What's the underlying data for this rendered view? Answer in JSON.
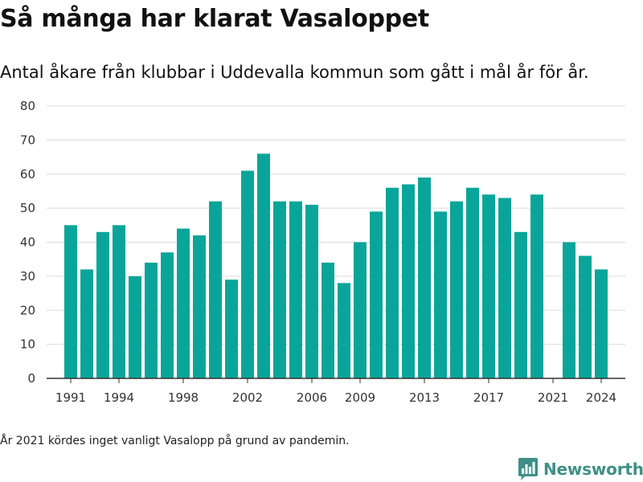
{
  "header": {
    "title": "Så många har klarat Vasaloppet",
    "subtitle": "Antal åkare från klubbar i Uddevalla kommun som gått i mål år för år."
  },
  "footer": {
    "note": "År 2021 kördes inget vanligt Vasalopp på grund av pandemin.",
    "brand": "Newsworthy",
    "brand_icon": "bar-chart-logo-icon"
  },
  "colors": {
    "bar": "#0aa59a",
    "grid": "#dcdcdc",
    "axis": "#333333",
    "brand": "#3f8f88"
  },
  "chart_data": {
    "type": "bar",
    "title": "Så många har klarat Vasaloppet",
    "xlabel": "",
    "ylabel": "",
    "ylim": [
      0,
      80
    ],
    "xlim": [
      1989.5,
      2025.5
    ],
    "yticks": [
      0,
      10,
      20,
      30,
      40,
      50,
      60,
      70,
      80
    ],
    "xticks": [
      1991,
      1994,
      1998,
      2002,
      2006,
      2009,
      2013,
      2017,
      2021,
      2024
    ],
    "grid": true,
    "legend": "none",
    "categories": [
      1991,
      1992,
      1993,
      1994,
      1995,
      1996,
      1997,
      1998,
      1999,
      2000,
      2001,
      2002,
      2003,
      2004,
      2005,
      2006,
      2007,
      2008,
      2009,
      2010,
      2011,
      2012,
      2013,
      2014,
      2015,
      2016,
      2017,
      2018,
      2019,
      2020,
      2022,
      2023,
      2024
    ],
    "values": [
      45,
      32,
      43,
      45,
      30,
      34,
      37,
      44,
      42,
      52,
      29,
      61,
      66,
      52,
      52,
      51,
      34,
      28,
      40,
      49,
      56,
      57,
      59,
      49,
      52,
      56,
      54,
      53,
      43,
      54,
      40,
      36,
      32
    ]
  }
}
